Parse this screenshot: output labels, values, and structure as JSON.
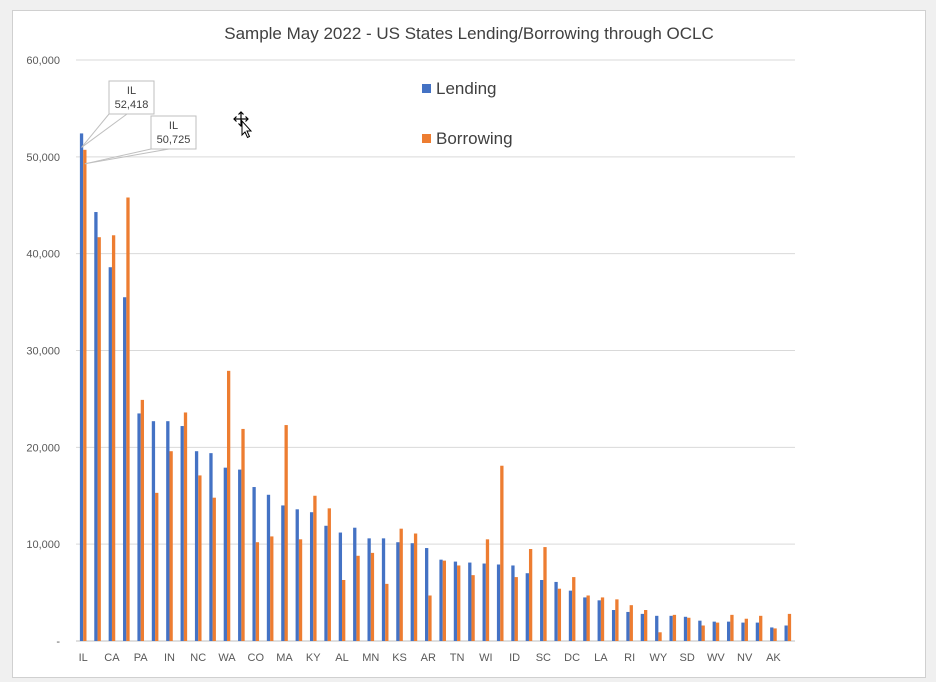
{
  "chart_data": {
    "type": "bar",
    "title": "Sample May 2022 - US States Lending/Borrowing through OCLC",
    "ylim": [
      0,
      60000
    ],
    "yticks": [
      "60,000",
      "50,000",
      "40,000",
      "30,000",
      "20,000",
      "10,000",
      "-"
    ],
    "ytick_values": [
      60000,
      50000,
      40000,
      30000,
      20000,
      10000,
      0
    ],
    "grid": true,
    "legend_placement": "top-center",
    "categories": [
      "IL",
      "",
      "CA",
      "",
      "PA",
      "",
      "IN",
      "",
      "NC",
      "",
      "WA",
      "",
      "CO",
      "",
      "MA",
      "",
      "KY",
      "",
      "AL",
      "",
      "MN",
      "",
      "KS",
      "",
      "AR",
      "",
      "TN",
      "",
      "WI",
      "",
      "ID",
      "",
      "SC",
      "",
      "DC",
      "",
      "LA",
      "",
      "RI",
      "",
      "WY",
      "",
      "SD",
      "",
      "WV",
      "",
      "NV",
      "",
      "AK",
      ""
    ],
    "series": [
      {
        "name": "Lending",
        "color": "#4472C4",
        "values": [
          52418,
          44300,
          38600,
          35500,
          23500,
          22700,
          22700,
          22200,
          19600,
          19400,
          17900,
          17700,
          15900,
          15100,
          14000,
          13600,
          13300,
          11900,
          11200,
          11700,
          10600,
          10600,
          10200,
          10100,
          9600,
          8400,
          8200,
          8100,
          8000,
          7900,
          7800,
          7000,
          6300,
          6100,
          5200,
          4500,
          4200,
          3200,
          3000,
          2800,
          2600,
          2600,
          2500,
          2100,
          2000,
          2000,
          1900,
          1900,
          1400,
          1600
        ]
      },
      {
        "name": "Borrowing",
        "color": "#ED7D31",
        "values": [
          50725,
          41700,
          41900,
          45800,
          24900,
          15300,
          19600,
          23600,
          17100,
          14800,
          27900,
          21900,
          10200,
          10800,
          22300,
          10500,
          15000,
          13700,
          6300,
          8800,
          9100,
          5900,
          11600,
          11100,
          4700,
          8300,
          7800,
          6800,
          10500,
          18100,
          6600,
          9500,
          9700,
          5400,
          6600,
          4700,
          4500,
          4300,
          3700,
          3200,
          900,
          2700,
          2400,
          1600,
          1900,
          2700,
          2300,
          2600,
          1300,
          2800
        ]
      }
    ],
    "callouts": [
      {
        "category": "IL",
        "value_label": "52,418",
        "series": "Lending"
      },
      {
        "category": "IL",
        "value_label": "50,725",
        "series": "Borrowing"
      }
    ]
  }
}
